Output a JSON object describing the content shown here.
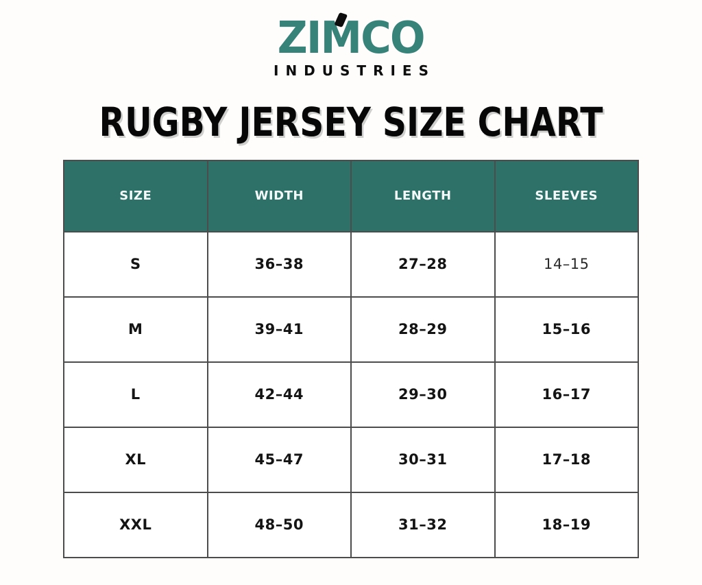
{
  "logo": {
    "name": "ZIMCO",
    "subtitle": "INDUSTRIES"
  },
  "title": "RUGBY JERSEY SIZE CHART",
  "colors": {
    "header_teal": "#2d7168",
    "logo_teal": "#37837a",
    "border_gray": "#4c4c4c",
    "title_black": "#070707",
    "background": "#fefdfc"
  },
  "table": {
    "headers": [
      "SIZE",
      "WIDTH",
      "LENGTH",
      "SLEEVES"
    ],
    "rows": [
      {
        "size": "S",
        "width": "36–38",
        "length": "27–28",
        "sleeves": "14–15"
      },
      {
        "size": "M",
        "width": "39–41",
        "length": "28–29",
        "sleeves": "15–16"
      },
      {
        "size": "L",
        "width": "42–44",
        "length": "29–30",
        "sleeves": "16–17"
      },
      {
        "size": "XL",
        "width": "45–47",
        "length": "30–31",
        "sleeves": "17–18"
      },
      {
        "size": "XXL",
        "width": "48–50",
        "length": "31–32",
        "sleeves": "18–19"
      }
    ]
  },
  "chart_data": {
    "type": "table",
    "title": "RUGBY JERSEY SIZE CHART",
    "columns": [
      "SIZE",
      "WIDTH",
      "LENGTH",
      "SLEEVES"
    ],
    "rows": [
      [
        "S",
        "36–38",
        "27–28",
        "14–15"
      ],
      [
        "M",
        "39–41",
        "28–29",
        "15–16"
      ],
      [
        "L",
        "42–44",
        "29–30",
        "16–17"
      ],
      [
        "XL",
        "45–47",
        "30–31",
        "17–18"
      ],
      [
        "XXL",
        "48–50",
        "31–32",
        "18–19"
      ]
    ]
  }
}
